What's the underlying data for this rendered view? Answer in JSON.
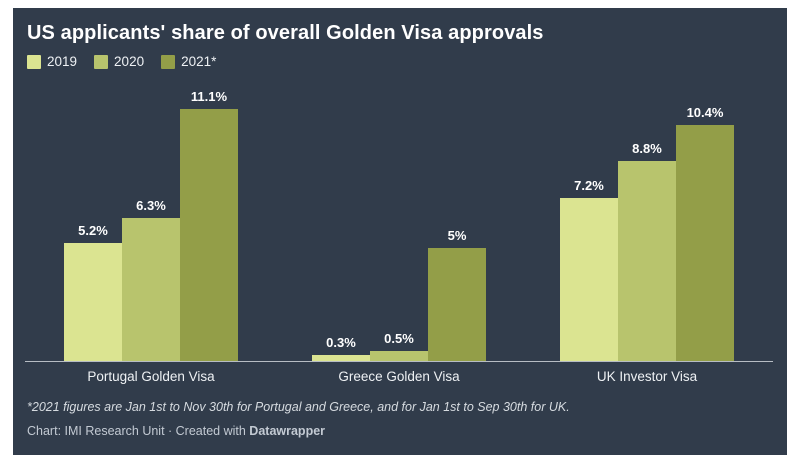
{
  "title": "US applicants' share of overall Golden Visa approvals",
  "footnote": "*2021 figures are Jan 1st to Nov 30th for Portugal and Greece, and for Jan 1st to Sep 30th for UK.",
  "byline": {
    "prefix": "Chart: IMI Research Unit · Created with ",
    "brand": "Datawrapper"
  },
  "colors": {
    "page": "#ffffff",
    "background": "#313c4b",
    "title": "#ffffff",
    "text": "#eef1f4",
    "muted-light": "#d6dbe0",
    "muted": "#c3cad3",
    "axis": "#b7bdc4"
  },
  "chart_data": {
    "type": "bar",
    "title": "US applicants' share of overall Golden Visa approvals",
    "categories": [
      "Portugal Golden Visa",
      "Greece Golden Visa",
      "UK Investor Visa"
    ],
    "series": [
      {
        "name": "2019",
        "color": "#dbe491",
        "values": [
          5.2,
          0.3,
          7.2
        ],
        "labels": [
          "5.2%",
          "0.3%",
          "7.2%"
        ]
      },
      {
        "name": "2020",
        "color": "#b8c46d",
        "values": [
          6.3,
          0.5,
          8.8
        ],
        "labels": [
          "6.3%",
          "0.5%",
          "8.8%"
        ]
      },
      {
        "name": "2021*",
        "color": "#939e48",
        "values": [
          11.1,
          5,
          10.4
        ],
        "labels": [
          "11.1%",
          "5%",
          "10.4%"
        ]
      }
    ],
    "legend": [
      "2019",
      "2020",
      "2021*"
    ],
    "legend_position": "top-left",
    "xlabel": "",
    "ylabel": "",
    "ylim": [
      0,
      12.33
    ],
    "grid": false,
    "y_axis_visible": false,
    "value_labels_shown": true
  }
}
